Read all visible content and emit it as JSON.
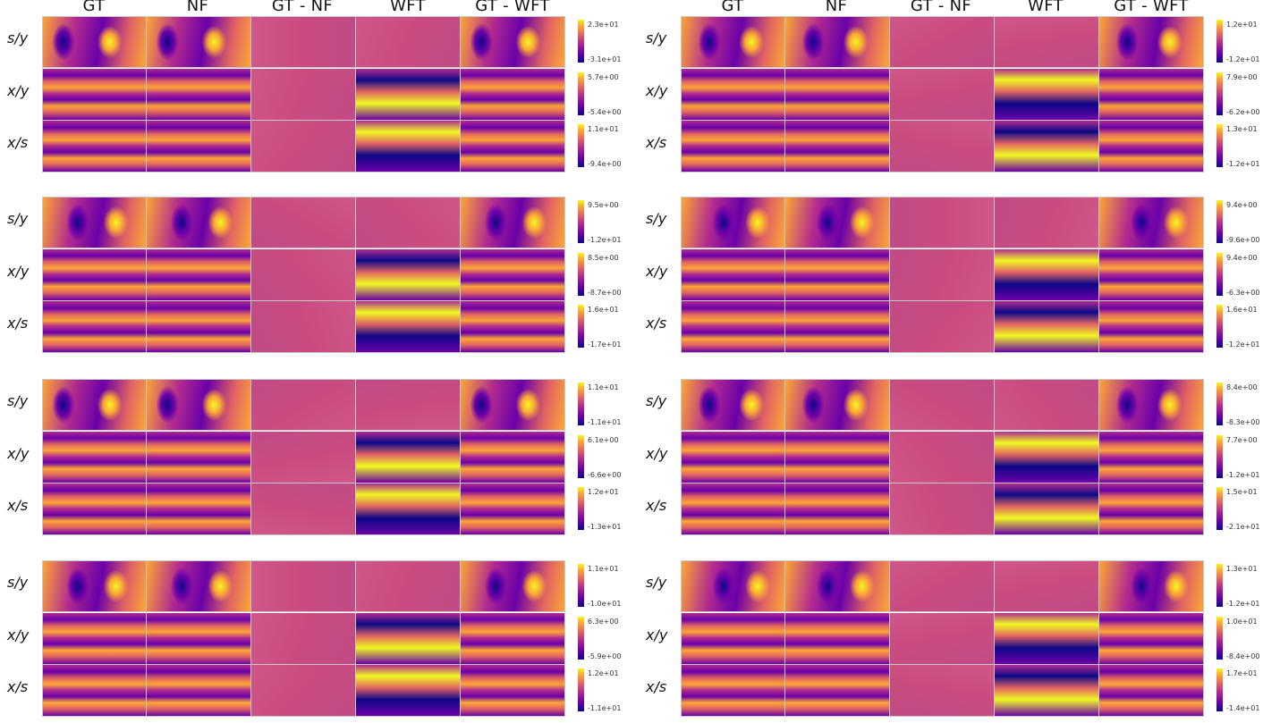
{
  "columns": [
    "GT",
    "NF",
    "GT - NF",
    "WFT",
    "GT - WFT"
  ],
  "row_labels": [
    "s/y",
    "x/y",
    "x/s"
  ],
  "colormap": {
    "name": "plasma",
    "colors": [
      "#0d0887",
      "#6a00a8",
      "#b12a90",
      "#e16462",
      "#fca636",
      "#f0f921"
    ],
    "neutral": "#c94c80"
  },
  "grids": [
    {
      "side": "left",
      "ranges": [
        [
          "2.3e+01",
          "-3.1e+01"
        ],
        [
          "5.7e+00",
          "-5.4e+00"
        ],
        [
          "1.1e+01",
          "-9.4e+00"
        ]
      ]
    },
    {
      "side": "right",
      "ranges": [
        [
          "1.2e+01",
          "-1.2e+01"
        ],
        [
          "7.9e+00",
          "-6.2e+00"
        ],
        [
          "1.3e+01",
          "-1.2e+01"
        ]
      ]
    },
    {
      "side": "left",
      "ranges": [
        [
          "9.5e+00",
          "-1.2e+01"
        ],
        [
          "8.5e+00",
          "-8.7e+00"
        ],
        [
          "1.6e+01",
          "-1.7e+01"
        ]
      ]
    },
    {
      "side": "right",
      "ranges": [
        [
          "9.4e+00",
          "-9.6e+00"
        ],
        [
          "9.4e+00",
          "-6.3e+00"
        ],
        [
          "1.6e+01",
          "-1.2e+01"
        ]
      ]
    },
    {
      "side": "left",
      "ranges": [
        [
          "1.1e+01",
          "-1.1e+01"
        ],
        [
          "6.1e+00",
          "-6.6e+00"
        ],
        [
          "1.2e+01",
          "-1.3e+01"
        ]
      ]
    },
    {
      "side": "right",
      "ranges": [
        [
          "8.4e+00",
          "-8.3e+00"
        ],
        [
          "7.7e+00",
          "-1.2e+01"
        ],
        [
          "1.5e+01",
          "-2.1e+01"
        ]
      ]
    },
    {
      "side": "left",
      "ranges": [
        [
          "1.1e+01",
          "-1.0e+01"
        ],
        [
          "6.3e+00",
          "-5.9e+00"
        ],
        [
          "1.2e+01",
          "-1.1e+01"
        ]
      ]
    },
    {
      "side": "right",
      "ranges": [
        [
          "1.3e+01",
          "-1.2e+01"
        ],
        [
          "1.0e+01",
          "-8.4e+00"
        ],
        [
          "1.7e+01",
          "-1.4e+01"
        ]
      ]
    }
  ]
}
